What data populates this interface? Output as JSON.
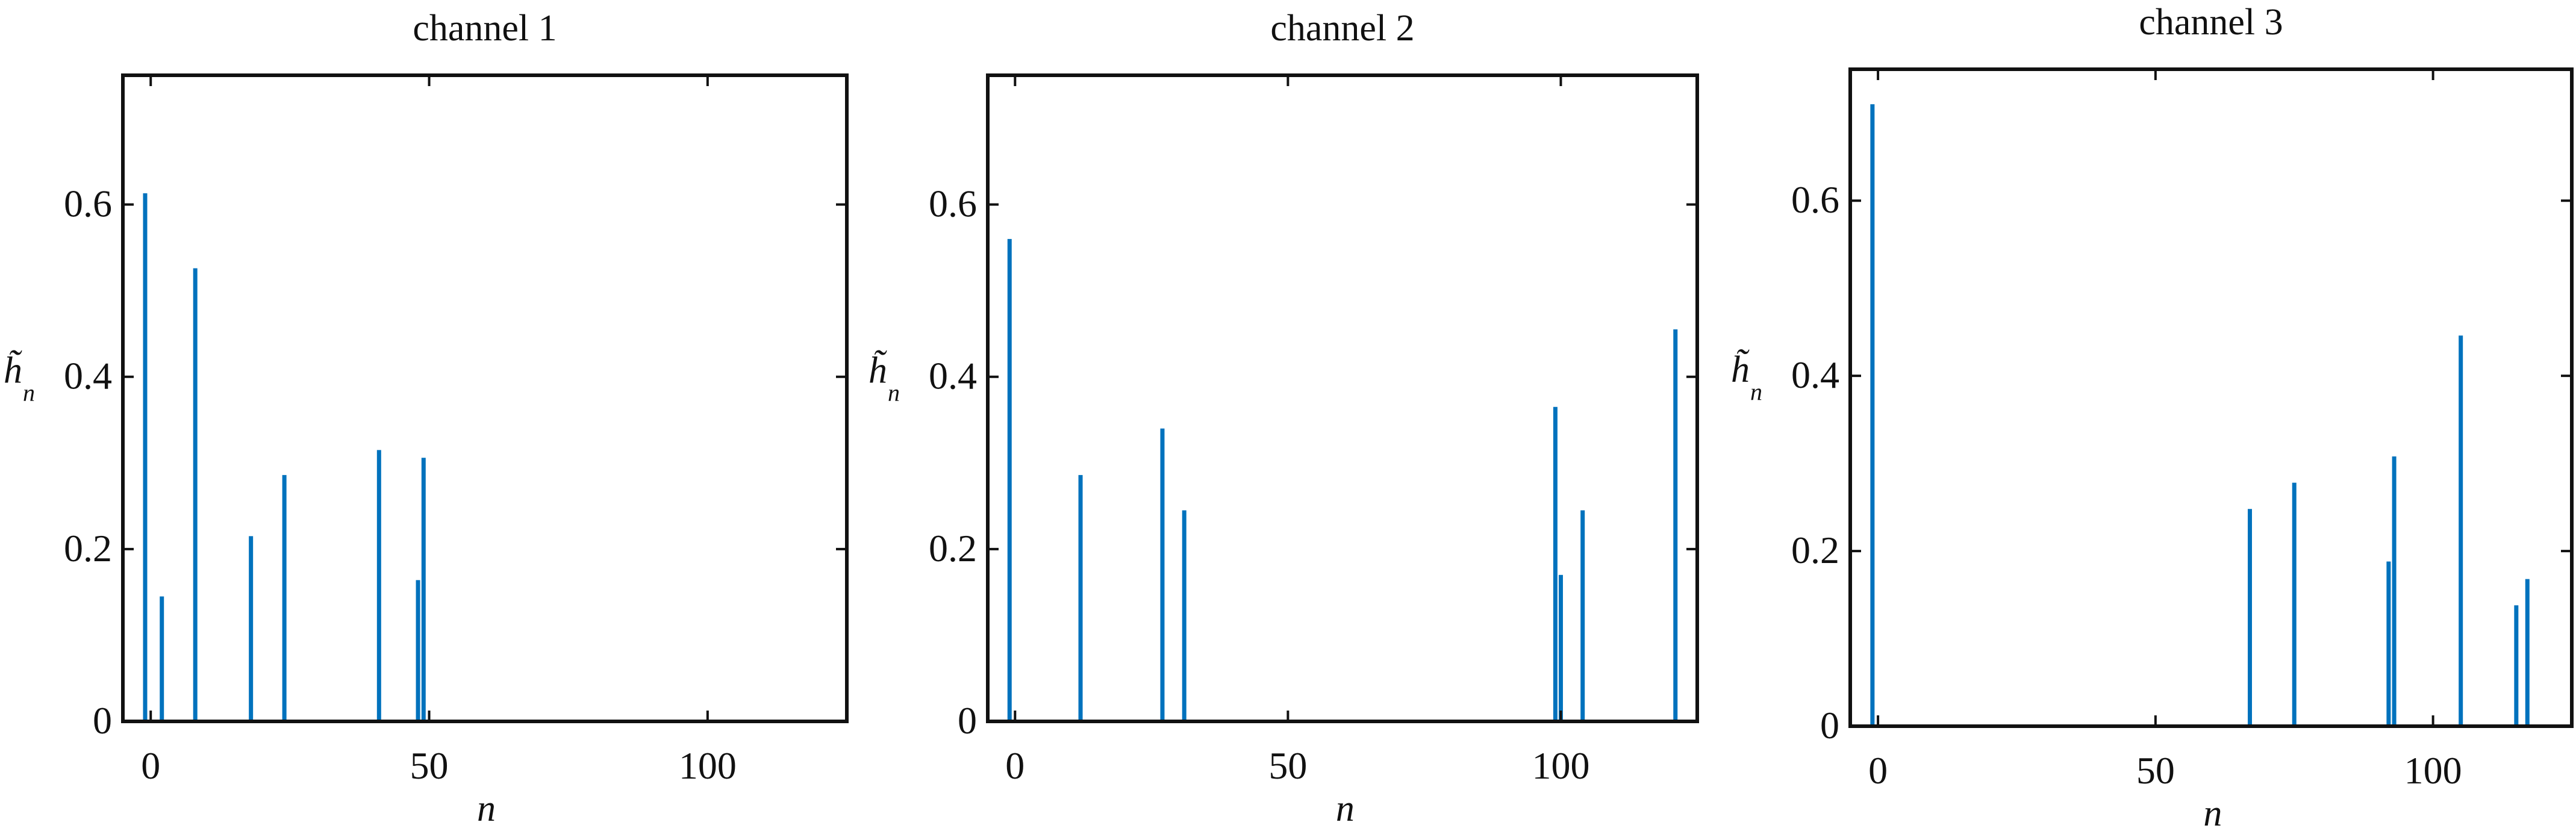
{
  "chart_data": [
    {
      "type": "stem",
      "title": "channel 1",
      "xlabel": "n",
      "ylabel": "h̃",
      "ylabel_subscript": "n",
      "xlim": [
        -5,
        125
      ],
      "ylim": [
        0,
        0.75
      ],
      "xticks": [
        0,
        50,
        100
      ],
      "yticks": [
        0,
        0.2,
        0.4,
        0.6
      ],
      "ytick_labels": [
        "0",
        "0.2",
        "0.4",
        "0.6"
      ],
      "color": "#0072BD",
      "x": [
        -1,
        2,
        8,
        18,
        24,
        41,
        48,
        49
      ],
      "y": [
        0.613,
        0.145,
        0.526,
        0.215,
        0.286,
        0.315,
        0.164,
        0.306
      ]
    },
    {
      "type": "stem",
      "title": "channel 2",
      "xlabel": "n",
      "ylabel": "h̃",
      "ylabel_subscript": "n",
      "xlim": [
        -5,
        125
      ],
      "ylim": [
        0,
        0.75
      ],
      "xticks": [
        0,
        50,
        100
      ],
      "yticks": [
        0,
        0.2,
        0.4,
        0.6
      ],
      "ytick_labels": [
        "0",
        "0.2",
        "0.4",
        "0.6"
      ],
      "color": "#0072BD",
      "x": [
        -1,
        12,
        27,
        31,
        99,
        100,
        104,
        121
      ],
      "y": [
        0.56,
        0.286,
        0.34,
        0.245,
        0.365,
        0.17,
        0.245,
        0.455
      ]
    },
    {
      "type": "stem",
      "title": "channel 3",
      "xlabel": "n",
      "ylabel": "h̃",
      "ylabel_subscript": "n",
      "xlim": [
        -5,
        125
      ],
      "ylim": [
        0,
        0.75
      ],
      "xticks": [
        0,
        50,
        100
      ],
      "yticks": [
        0,
        0.2,
        0.4,
        0.6
      ],
      "ytick_labels": [
        "0",
        "0.2",
        "0.4",
        "0.6"
      ],
      "color": "#0072BD",
      "x": [
        -1,
        67,
        75,
        92,
        93,
        105,
        115,
        117
      ],
      "y": [
        0.71,
        0.248,
        0.278,
        0.188,
        0.308,
        0.446,
        0.138,
        0.168
      ]
    }
  ]
}
